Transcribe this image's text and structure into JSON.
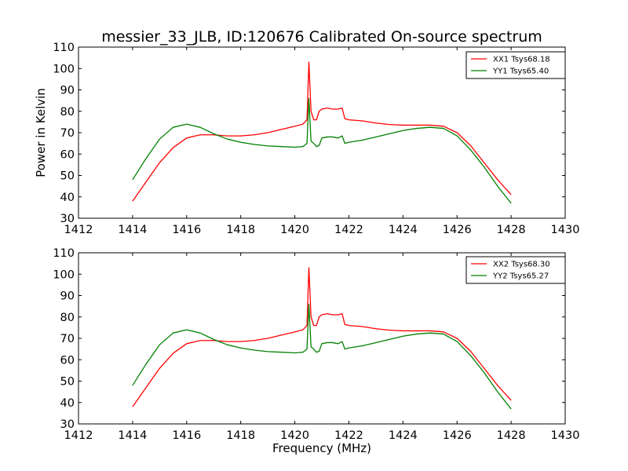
{
  "figure": {
    "title": "messier_33_JLB, ID:120676 Calibrated On-source spectrum"
  },
  "chart_data": [
    {
      "type": "line",
      "title": "messier_33_JLB, ID:120676 Calibrated On-source spectrum",
      "xlabel": "",
      "ylabel": "Power in Kelvin",
      "xlim": [
        1412,
        1430
      ],
      "ylim": [
        30,
        110
      ],
      "xticks": [
        1412,
        1414,
        1416,
        1418,
        1420,
        1422,
        1424,
        1426,
        1428,
        1430
      ],
      "yticks": [
        30,
        40,
        50,
        60,
        70,
        80,
        90,
        100,
        110
      ],
      "legend_position": "top-right",
      "grid": false,
      "series": [
        {
          "name": "XX1 Tsys68.18",
          "color": "#ff0000",
          "x": [
            1414.0,
            1414.5,
            1415.0,
            1415.5,
            1416.0,
            1416.5,
            1417.0,
            1417.5,
            1418.0,
            1418.5,
            1419.0,
            1419.5,
            1420.0,
            1420.3,
            1420.45,
            1420.52,
            1420.6,
            1420.7,
            1420.8,
            1420.9,
            1421.0,
            1421.2,
            1421.4,
            1421.6,
            1421.75,
            1421.85,
            1422.0,
            1422.5,
            1423.0,
            1423.5,
            1424.0,
            1424.5,
            1425.0,
            1425.5,
            1426.0,
            1426.5,
            1427.0,
            1427.5,
            1428.0
          ],
          "y": [
            38,
            47,
            56,
            63,
            67.5,
            69,
            69,
            68.5,
            68.5,
            69,
            70,
            71.5,
            73,
            74,
            76,
            103,
            80,
            76,
            76,
            80,
            81,
            81.5,
            81,
            81,
            81.5,
            76.5,
            76,
            75.5,
            74.5,
            73.8,
            73.5,
            73.5,
            73.5,
            73,
            70,
            64,
            56,
            48,
            41
          ]
        },
        {
          "name": "YY1 Tsys65.40",
          "color": "#008000",
          "x": [
            1414.0,
            1414.5,
            1415.0,
            1415.5,
            1416.0,
            1416.5,
            1417.0,
            1417.5,
            1418.0,
            1418.5,
            1419.0,
            1419.5,
            1420.0,
            1420.3,
            1420.45,
            1420.52,
            1420.6,
            1420.7,
            1420.8,
            1420.9,
            1421.0,
            1421.2,
            1421.4,
            1421.6,
            1421.75,
            1421.85,
            1422.0,
            1422.5,
            1423.0,
            1423.5,
            1424.0,
            1424.5,
            1425.0,
            1425.5,
            1426.0,
            1426.5,
            1427.0,
            1427.5,
            1428.0
          ],
          "y": [
            48,
            58,
            67,
            72.5,
            74,
            72.5,
            69.5,
            67,
            65.5,
            64.5,
            63.8,
            63.5,
            63.2,
            63.5,
            65,
            86,
            66,
            65,
            63.5,
            64,
            67.5,
            68,
            68,
            67.5,
            68.5,
            65,
            65.5,
            66.5,
            68,
            69.5,
            71,
            72,
            72.5,
            72,
            68.5,
            62,
            54,
            45,
            37
          ]
        }
      ]
    },
    {
      "type": "line",
      "title": "",
      "xlabel": "Frequency (MHz)",
      "ylabel": "",
      "xlim": [
        1412,
        1430
      ],
      "ylim": [
        30,
        110
      ],
      "xticks": [
        1412,
        1414,
        1416,
        1418,
        1420,
        1422,
        1424,
        1426,
        1428,
        1430
      ],
      "yticks": [
        30,
        40,
        50,
        60,
        70,
        80,
        90,
        100,
        110
      ],
      "legend_position": "top-right",
      "grid": false,
      "series": [
        {
          "name": "XX2 Tsys68.30",
          "color": "#ff0000",
          "x": [
            1414.0,
            1414.5,
            1415.0,
            1415.5,
            1416.0,
            1416.5,
            1417.0,
            1417.5,
            1418.0,
            1418.5,
            1419.0,
            1419.5,
            1420.0,
            1420.3,
            1420.45,
            1420.52,
            1420.6,
            1420.7,
            1420.8,
            1420.9,
            1421.0,
            1421.2,
            1421.4,
            1421.6,
            1421.75,
            1421.85,
            1422.0,
            1422.5,
            1423.0,
            1423.5,
            1424.0,
            1424.5,
            1425.0,
            1425.5,
            1426.0,
            1426.5,
            1427.0,
            1427.5,
            1428.0
          ],
          "y": [
            38,
            47,
            56,
            63,
            67.5,
            69,
            69,
            68.5,
            68.5,
            69,
            70,
            71.5,
            73,
            74,
            76,
            103,
            80,
            76,
            76,
            80,
            81,
            81.5,
            81,
            81,
            81.5,
            76.5,
            76,
            75.5,
            74.5,
            73.8,
            73.5,
            73.5,
            73.5,
            73,
            70,
            64,
            56,
            48,
            41
          ]
        },
        {
          "name": "YY2 Tsys65.27",
          "color": "#008000",
          "x": [
            1414.0,
            1414.5,
            1415.0,
            1415.5,
            1416.0,
            1416.5,
            1417.0,
            1417.5,
            1418.0,
            1418.5,
            1419.0,
            1419.5,
            1420.0,
            1420.3,
            1420.45,
            1420.52,
            1420.6,
            1420.7,
            1420.8,
            1420.9,
            1421.0,
            1421.2,
            1421.4,
            1421.6,
            1421.75,
            1421.85,
            1422.0,
            1422.5,
            1423.0,
            1423.5,
            1424.0,
            1424.5,
            1425.0,
            1425.5,
            1426.0,
            1426.5,
            1427.0,
            1427.5,
            1428.0
          ],
          "y": [
            48,
            58,
            67,
            72.5,
            74,
            72.5,
            69.5,
            67,
            65.5,
            64.5,
            63.8,
            63.5,
            63.2,
            63.5,
            65,
            86,
            66,
            65,
            63.5,
            64,
            67.5,
            68,
            68,
            67.5,
            68.5,
            65,
            65.5,
            66.5,
            68,
            69.5,
            71,
            72,
            72.5,
            72,
            68.5,
            62,
            54,
            45,
            37
          ]
        }
      ]
    }
  ]
}
